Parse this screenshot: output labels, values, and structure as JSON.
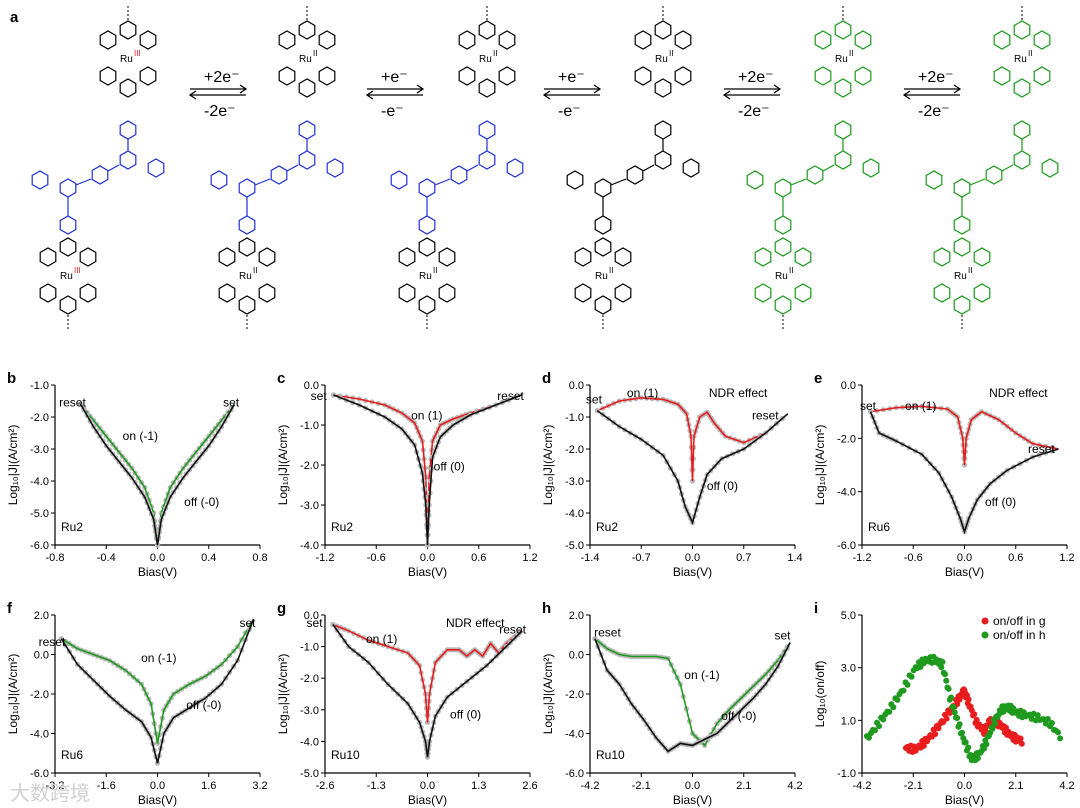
{
  "panel_a": {
    "label": "a",
    "structures": [
      {
        "color": "#1f2fd6",
        "metal_ox": "III",
        "metal_color": "#e02020"
      },
      {
        "color": "#1f2fd6",
        "metal_ox": "II",
        "metal_color": "#000000"
      },
      {
        "color": "#1f2fd6",
        "metal_ox": "II",
        "metal_color": "#000000"
      },
      {
        "color": "#000000",
        "metal_ox": "II",
        "metal_color": "#000000"
      },
      {
        "color": "#1a9a1a",
        "metal_ox": "II",
        "metal_color": "#000000"
      },
      {
        "color": "#1a9a1a",
        "metal_ox": "II",
        "metal_color": "#000000"
      }
    ],
    "metal": "Ru",
    "arrows": [
      {
        "top": "+2e⁻",
        "bottom": "-2e⁻"
      },
      {
        "top": "+e⁻",
        "bottom": "-e⁻"
      },
      {
        "top": "+e⁻",
        "bottom": "-e⁻"
      },
      {
        "top": "+2e⁻",
        "bottom": "-2e⁻"
      },
      {
        "top": "+2e⁻",
        "bottom": "-2e⁻"
      }
    ]
  },
  "colors": {
    "red": "#e81c1c",
    "green": "#1f9a1f",
    "black": "#111111",
    "grey": "#b8b8b8"
  },
  "chart_data": [
    {
      "id": "b",
      "label": "b",
      "type": "line",
      "device": "Ru2",
      "xlabel": "Bias(V)",
      "ylabel": "Log₁₀|J|(A/cm²)",
      "xlim": [
        -0.8,
        0.8
      ],
      "ylim": [
        -6.0,
        -1.0
      ],
      "xticks": [
        -0.8,
        -0.4,
        0.0,
        0.4,
        0.8
      ],
      "xticklabels": [
        "-0.8",
        "-0.4",
        "0.0",
        "0.4",
        "0.8"
      ],
      "yticks": [
        -6,
        -5,
        -4,
        -3,
        -2,
        -1
      ],
      "yticklabels": [
        "-6.0",
        "-5.0",
        "-4.0",
        "-3.0",
        "-2.0",
        "-1.0"
      ],
      "annotations": [
        "reset",
        "set",
        "on (-1)",
        "off (-0)"
      ],
      "series": [
        {
          "color": "green",
          "x": [
            -0.6,
            -0.5,
            -0.4,
            -0.3,
            -0.2,
            -0.1,
            -0.03,
            0,
            0.03,
            0.1,
            0.2,
            0.3,
            0.4,
            0.5,
            0.6
          ],
          "y": [
            -1.6,
            -2.1,
            -2.6,
            -3.1,
            -3.6,
            -4.2,
            -5.0,
            -6.0,
            -5.0,
            -4.2,
            -3.6,
            -3.1,
            -2.6,
            -2.1,
            -1.6
          ]
        },
        {
          "color": "black",
          "x": [
            -0.6,
            -0.5,
            -0.4,
            -0.3,
            -0.2,
            -0.1,
            -0.03,
            0,
            0.03,
            0.1,
            0.2,
            0.3,
            0.4,
            0.5,
            0.6
          ],
          "y": [
            -1.6,
            -2.3,
            -2.9,
            -3.4,
            -3.9,
            -4.5,
            -5.2,
            -6.0,
            -5.2,
            -4.5,
            -3.9,
            -3.4,
            -2.9,
            -2.3,
            -1.6
          ]
        }
      ]
    },
    {
      "id": "c",
      "label": "c",
      "type": "line",
      "device": "Ru2",
      "xlabel": "Bias(V)",
      "ylabel": "Log₁₀|J|(A/cm²)",
      "xlim": [
        -1.2,
        1.2
      ],
      "ylim": [
        -4.0,
        0.0
      ],
      "xticks": [
        -1.2,
        -0.6,
        0.0,
        0.6,
        1.2
      ],
      "xticklabels": [
        "-1.2",
        "-0.6",
        "0.0",
        "0.6",
        "1.2"
      ],
      "yticks": [
        -4,
        -3,
        -2,
        -1,
        0
      ],
      "yticklabels": [
        "-4.0",
        "-3.0",
        "-2.0",
        "-1.0",
        "0.0"
      ],
      "annotations": [
        "set",
        "reset",
        "on (1)",
        "off (0)"
      ],
      "series": [
        {
          "color": "red",
          "x": [
            -1.1,
            -0.8,
            -0.5,
            -0.3,
            -0.15,
            -0.06,
            -0.02,
            0,
            0.02,
            0.06,
            0.15,
            0.3,
            0.5,
            0.8,
            1.1
          ],
          "y": [
            -0.25,
            -0.35,
            -0.5,
            -0.7,
            -0.95,
            -1.4,
            -2.3,
            -4.0,
            -2.3,
            -1.4,
            -1.0,
            -0.85,
            -0.7,
            -0.5,
            -0.25
          ]
        },
        {
          "color": "black",
          "x": [
            -1.1,
            -0.8,
            -0.5,
            -0.3,
            -0.15,
            -0.06,
            -0.02,
            0,
            0.02,
            0.06,
            0.15,
            0.3,
            0.5,
            0.8,
            1.1
          ],
          "y": [
            -0.25,
            -0.5,
            -0.8,
            -1.1,
            -1.5,
            -2.2,
            -3.0,
            -4.0,
            -3.0,
            -1.8,
            -1.3,
            -1.0,
            -0.75,
            -0.5,
            -0.25
          ]
        }
      ]
    },
    {
      "id": "d",
      "label": "d",
      "type": "line",
      "device": "Ru2",
      "xlabel": "Bias(V)",
      "ylabel": "Log₁₀|J|(A/cm²)",
      "xlim": [
        -1.4,
        1.4
      ],
      "ylim": [
        -5.0,
        0.0
      ],
      "xticks": [
        -1.4,
        -0.7,
        0.0,
        0.7,
        1.4
      ],
      "xticklabels": [
        "-1.4",
        "-0.7",
        "0.0",
        "0.7",
        "1.4"
      ],
      "yticks": [
        -5,
        -4,
        -3,
        -2,
        -1,
        0
      ],
      "yticklabels": [
        "-5.0",
        "-4.0",
        "-3.0",
        "-2.0",
        "-1.0",
        "0.0"
      ],
      "annotations": [
        "set",
        "on (1)",
        "NDR effect",
        "reset",
        "off (0)"
      ],
      "series": [
        {
          "color": "red",
          "x": [
            -1.3,
            -1.0,
            -0.7,
            -0.4,
            -0.2,
            -0.08,
            -0.02,
            0,
            0.02,
            0.1,
            0.2,
            0.3,
            0.45,
            0.7,
            1.0,
            1.3
          ],
          "y": [
            -0.8,
            -0.5,
            -0.4,
            -0.45,
            -0.6,
            -0.9,
            -1.6,
            -3.0,
            -1.6,
            -1.0,
            -0.85,
            -1.2,
            -1.6,
            -1.8,
            -1.5,
            -0.9
          ]
        },
        {
          "color": "black",
          "x": [
            -1.3,
            -1.0,
            -0.7,
            -0.4,
            -0.2,
            -0.1,
            0,
            0.1,
            0.2,
            0.4,
            0.7,
            1.0,
            1.3
          ],
          "y": [
            -0.8,
            -1.3,
            -1.7,
            -2.2,
            -3.0,
            -3.8,
            -4.3,
            -3.5,
            -2.8,
            -2.3,
            -2.0,
            -1.5,
            -0.9
          ]
        }
      ]
    },
    {
      "id": "e",
      "label": "e",
      "type": "line",
      "device": "Ru6",
      "xlabel": "Bias(V)",
      "ylabel": "Log₁₀|J|(A/cm²)",
      "xlim": [
        -1.2,
        1.2
      ],
      "ylim": [
        -6.0,
        0.0
      ],
      "xticks": [
        -1.2,
        -0.6,
        0.0,
        0.6,
        1.2
      ],
      "xticklabels": [
        "-1.2",
        "-0.6",
        "0.0",
        "0.6",
        "1.2"
      ],
      "yticks": [
        -6,
        -4,
        -2,
        0
      ],
      "yticklabels": [
        "-6.0",
        "-4.0",
        "-2.0",
        "0.0"
      ],
      "annotations": [
        "set",
        "on (1)",
        "NDR effect",
        "reset",
        "off (0)"
      ],
      "series": [
        {
          "color": "red",
          "x": [
            -1.1,
            -0.8,
            -0.5,
            -0.2,
            -0.08,
            -0.02,
            0,
            0.02,
            0.08,
            0.2,
            0.4,
            0.6,
            0.8,
            1.1
          ],
          "y": [
            -1.0,
            -0.85,
            -0.8,
            -0.9,
            -1.2,
            -2.0,
            -3.0,
            -2.0,
            -1.3,
            -1.0,
            -1.3,
            -1.8,
            -2.2,
            -2.4
          ]
        },
        {
          "color": "black",
          "x": [
            -1.1,
            -1.0,
            -0.8,
            -0.5,
            -0.3,
            -0.15,
            -0.05,
            0,
            0.05,
            0.15,
            0.3,
            0.5,
            0.8,
            1.1
          ],
          "y": [
            -1.0,
            -1.8,
            -2.1,
            -2.6,
            -3.3,
            -4.2,
            -5.0,
            -5.5,
            -5.0,
            -4.3,
            -3.7,
            -3.2,
            -2.7,
            -2.4
          ]
        }
      ]
    },
    {
      "id": "f",
      "label": "f",
      "type": "line",
      "device": "Ru6",
      "xlabel": "Bias(V)",
      "ylabel": "Log₁₀|J|(A/cm²)",
      "xlim": [
        -3.2,
        3.2
      ],
      "ylim": [
        -6.0,
        2.0
      ],
      "xticks": [
        -3.2,
        -1.6,
        0.0,
        1.6,
        3.2
      ],
      "xticklabels": [
        "-3.2",
        "-1.6",
        "0.0",
        "1.6",
        "3.2"
      ],
      "yticks": [
        -6,
        -4,
        -2,
        0,
        2
      ],
      "yticklabels": [
        "-6.0",
        "-4.0",
        "-2.0",
        "0.0",
        "2.0"
      ],
      "annotations": [
        "reset",
        "on (-1)",
        "set",
        "off (-0)"
      ],
      "series": [
        {
          "color": "green",
          "x": [
            -3.0,
            -2.5,
            -2.0,
            -1.5,
            -1.0,
            -0.5,
            -0.2,
            0,
            0.2,
            0.5,
            1.0,
            1.5,
            2.0,
            2.5,
            3.0
          ],
          "y": [
            0.8,
            0.3,
            0.0,
            -0.3,
            -0.8,
            -1.5,
            -2.5,
            -4.5,
            -2.8,
            -2.0,
            -1.5,
            -1.1,
            -0.5,
            0.4,
            1.8
          ]
        },
        {
          "color": "black",
          "x": [
            -3.0,
            -2.5,
            -2.0,
            -1.5,
            -1.0,
            -0.5,
            -0.2,
            0,
            0.2,
            0.5,
            1.0,
            1.5,
            2.0,
            2.5,
            3.0
          ],
          "y": [
            0.8,
            -0.5,
            -1.3,
            -2.1,
            -2.8,
            -3.4,
            -4.2,
            -5.5,
            -4.0,
            -3.2,
            -2.7,
            -2.2,
            -1.5,
            -0.3,
            1.8
          ]
        }
      ]
    },
    {
      "id": "g",
      "label": "g",
      "type": "line",
      "device": "Ru10",
      "xlabel": "Bias(V)",
      "ylabel": "Log₁₀|J|(A/cm²)",
      "xlim": [
        -2.6,
        2.6
      ],
      "ylim": [
        -5.0,
        0.0
      ],
      "xticks": [
        -2.6,
        -1.3,
        0.0,
        1.3,
        2.6
      ],
      "xticklabels": [
        "-2.6",
        "-1.3",
        "0.0",
        "1.3",
        "2.6"
      ],
      "yticks": [
        -5,
        -4,
        -3,
        -2,
        -1,
        0
      ],
      "yticklabels": [
        "-5.0",
        "-4.0",
        "-3.0",
        "-2.0",
        "-1.0",
        "0.0"
      ],
      "annotations": [
        "set",
        "on (1)",
        "NDR effect",
        "reset",
        "off (0)"
      ],
      "series": [
        {
          "color": "red",
          "x": [
            -2.4,
            -2.0,
            -1.5,
            -1.0,
            -0.5,
            -0.2,
            -0.05,
            0,
            0.05,
            0.2,
            0.5,
            0.8,
            1.0,
            1.2,
            1.4,
            1.6,
            1.8,
            2.0,
            2.2,
            2.4
          ],
          "y": [
            -0.3,
            -0.5,
            -0.8,
            -1.0,
            -1.2,
            -1.6,
            -2.5,
            -3.4,
            -2.5,
            -1.5,
            -1.1,
            -1.1,
            -1.3,
            -1.1,
            -1.3,
            -0.9,
            -1.2,
            -0.9,
            -0.7,
            -0.5
          ]
        },
        {
          "color": "black",
          "x": [
            -2.4,
            -2.0,
            -1.5,
            -1.0,
            -0.5,
            -0.2,
            -0.05,
            0,
            0.05,
            0.2,
            0.5,
            1.0,
            1.5,
            2.0,
            2.4
          ],
          "y": [
            -0.3,
            -1.0,
            -1.5,
            -2.2,
            -2.8,
            -3.4,
            -4.0,
            -4.5,
            -4.0,
            -3.2,
            -2.6,
            -2.1,
            -1.6,
            -1.0,
            -0.5
          ]
        }
      ]
    },
    {
      "id": "h",
      "label": "h",
      "type": "line",
      "device": "Ru10",
      "xlabel": "Bias(V)",
      "ylabel": "Log₁₀|J|(A/cm²)",
      "xlim": [
        -4.2,
        4.2
      ],
      "ylim": [
        -6.0,
        2.0
      ],
      "xticks": [
        -4.2,
        -2.1,
        0.0,
        2.1,
        4.2
      ],
      "xticklabels": [
        "-4.2",
        "-2.1",
        "0.0",
        "2.1",
        "4.2"
      ],
      "yticks": [
        -6,
        -4,
        -2,
        0,
        2
      ],
      "yticklabels": [
        "-6.0",
        "-4.0",
        "-2.0",
        "0.0",
        "2.0"
      ],
      "annotations": [
        "reset",
        "on (-1)",
        "set",
        "off (-0)"
      ],
      "series": [
        {
          "color": "green",
          "x": [
            -4.0,
            -3.5,
            -3.0,
            -2.5,
            -2.0,
            -1.5,
            -1.0,
            -0.5,
            0,
            0.5,
            1.0,
            1.5,
            2.0,
            2.5,
            3.0,
            3.5,
            4.0
          ],
          "y": [
            0.8,
            0.3,
            0.0,
            -0.1,
            -0.1,
            -0.1,
            -0.2,
            -1.5,
            -4.0,
            -4.6,
            -3.5,
            -2.8,
            -2.2,
            -1.6,
            -1.0,
            -0.3,
            0.6
          ]
        },
        {
          "color": "black",
          "x": [
            -4.0,
            -3.5,
            -3.0,
            -2.5,
            -2.0,
            -1.5,
            -1.0,
            -0.5,
            0,
            0.5,
            1.0,
            1.5,
            2.0,
            2.5,
            3.0,
            3.5,
            4.0
          ],
          "y": [
            0.8,
            -0.8,
            -1.5,
            -2.5,
            -3.3,
            -4.2,
            -4.9,
            -4.5,
            -4.6,
            -4.3,
            -4.0,
            -3.4,
            -2.8,
            -2.2,
            -1.5,
            -0.6,
            0.6
          ]
        }
      ]
    },
    {
      "id": "i",
      "label": "i",
      "type": "scatter",
      "xlabel": "Bias(V)",
      "ylabel": "Log₁₀(on/off)",
      "xlim": [
        -4.2,
        4.2
      ],
      "ylim": [
        -1.0,
        5.0
      ],
      "xticks": [
        -4.2,
        -2.1,
        0.0,
        2.1,
        4.2
      ],
      "xticklabels": [
        "-4.2",
        "-2.1",
        "0.0",
        "2.1",
        "4.2"
      ],
      "yticks": [
        -1,
        1,
        3,
        5
      ],
      "yticklabels": [
        "-1.0",
        "1.0",
        "3.0",
        "5.0"
      ],
      "legend": [
        "on/off in g",
        "on/off in h"
      ],
      "legend_position": "top-right",
      "series": [
        {
          "name": "on/off in g",
          "color": "red",
          "x": [
            -2.4,
            -2.0,
            -1.6,
            -1.2,
            -0.8,
            -0.4,
            -0.1,
            0.0,
            0.2,
            0.5,
            0.8,
            1.0,
            1.2,
            1.5,
            1.8,
            2.1,
            2.4
          ],
          "y": [
            -0.05,
            -0.1,
            0.2,
            0.6,
            1.1,
            1.6,
            2.0,
            2.1,
            1.6,
            0.9,
            0.6,
            0.9,
            1.0,
            0.8,
            0.5,
            0.3,
            0.2
          ]
        },
        {
          "name": "on/off in h",
          "color": "green",
          "x": [
            -4.0,
            -3.5,
            -3.0,
            -2.5,
            -2.0,
            -1.6,
            -1.2,
            -0.9,
            -0.6,
            -0.3,
            0,
            0.3,
            0.6,
            0.9,
            1.2,
            1.5,
            1.8,
            2.1,
            2.5,
            3.0,
            3.5,
            4.0
          ],
          "y": [
            0.3,
            0.9,
            1.5,
            2.2,
            3.0,
            3.3,
            3.3,
            3.1,
            1.9,
            1.0,
            0.2,
            -0.5,
            -0.3,
            0.2,
            0.9,
            1.4,
            1.5,
            1.3,
            1.2,
            1.1,
            0.9,
            0.3
          ]
        }
      ]
    }
  ],
  "watermark": "大数跨境"
}
